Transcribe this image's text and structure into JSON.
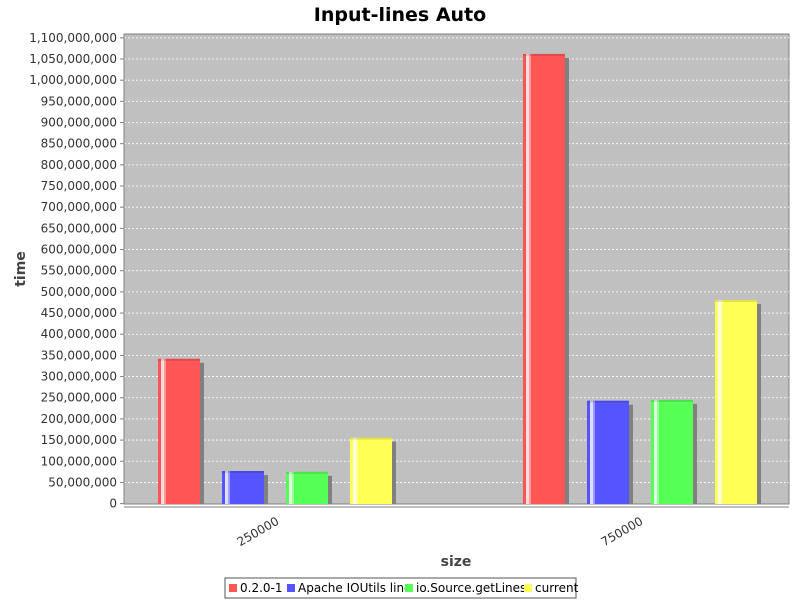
{
  "chart_data": {
    "type": "bar",
    "title": "Input-lines Auto",
    "xlabel": "size",
    "ylabel": "time",
    "categories": [
      "250000",
      "750000"
    ],
    "series": [
      {
        "name": "0.2.0-1",
        "values": [
          342000000,
          1062000000
        ],
        "color": "#ff5555"
      },
      {
        "name": "Apache IOUtils line",
        "values": [
          77000000,
          243000000
        ],
        "color": "#5555ff"
      },
      {
        "name": "io.Source.getLines",
        "values": [
          75000000,
          245000000
        ],
        "color": "#55ff55"
      },
      {
        "name": "current",
        "values": [
          156000000,
          481000000
        ],
        "color": "#ffff55"
      }
    ],
    "ylim": [
      0,
      1110000000
    ],
    "ytick_step": 50000000,
    "yticks": [
      "0",
      "50,000,000",
      "100,000,000",
      "150,000,000",
      "200,000,000",
      "250,000,000",
      "300,000,000",
      "350,000,000",
      "400,000,000",
      "450,000,000",
      "500,000,000",
      "550,000,000",
      "600,000,000",
      "650,000,000",
      "700,000,000",
      "750,000,000",
      "800,000,000",
      "850,000,000",
      "900,000,000",
      "950,000,000",
      "1,000,000,000",
      "1,050,000,000",
      "1,100,000,000"
    ],
    "grid": true,
    "legend_position": "bottom",
    "plot_background": "#c0c0c0"
  }
}
